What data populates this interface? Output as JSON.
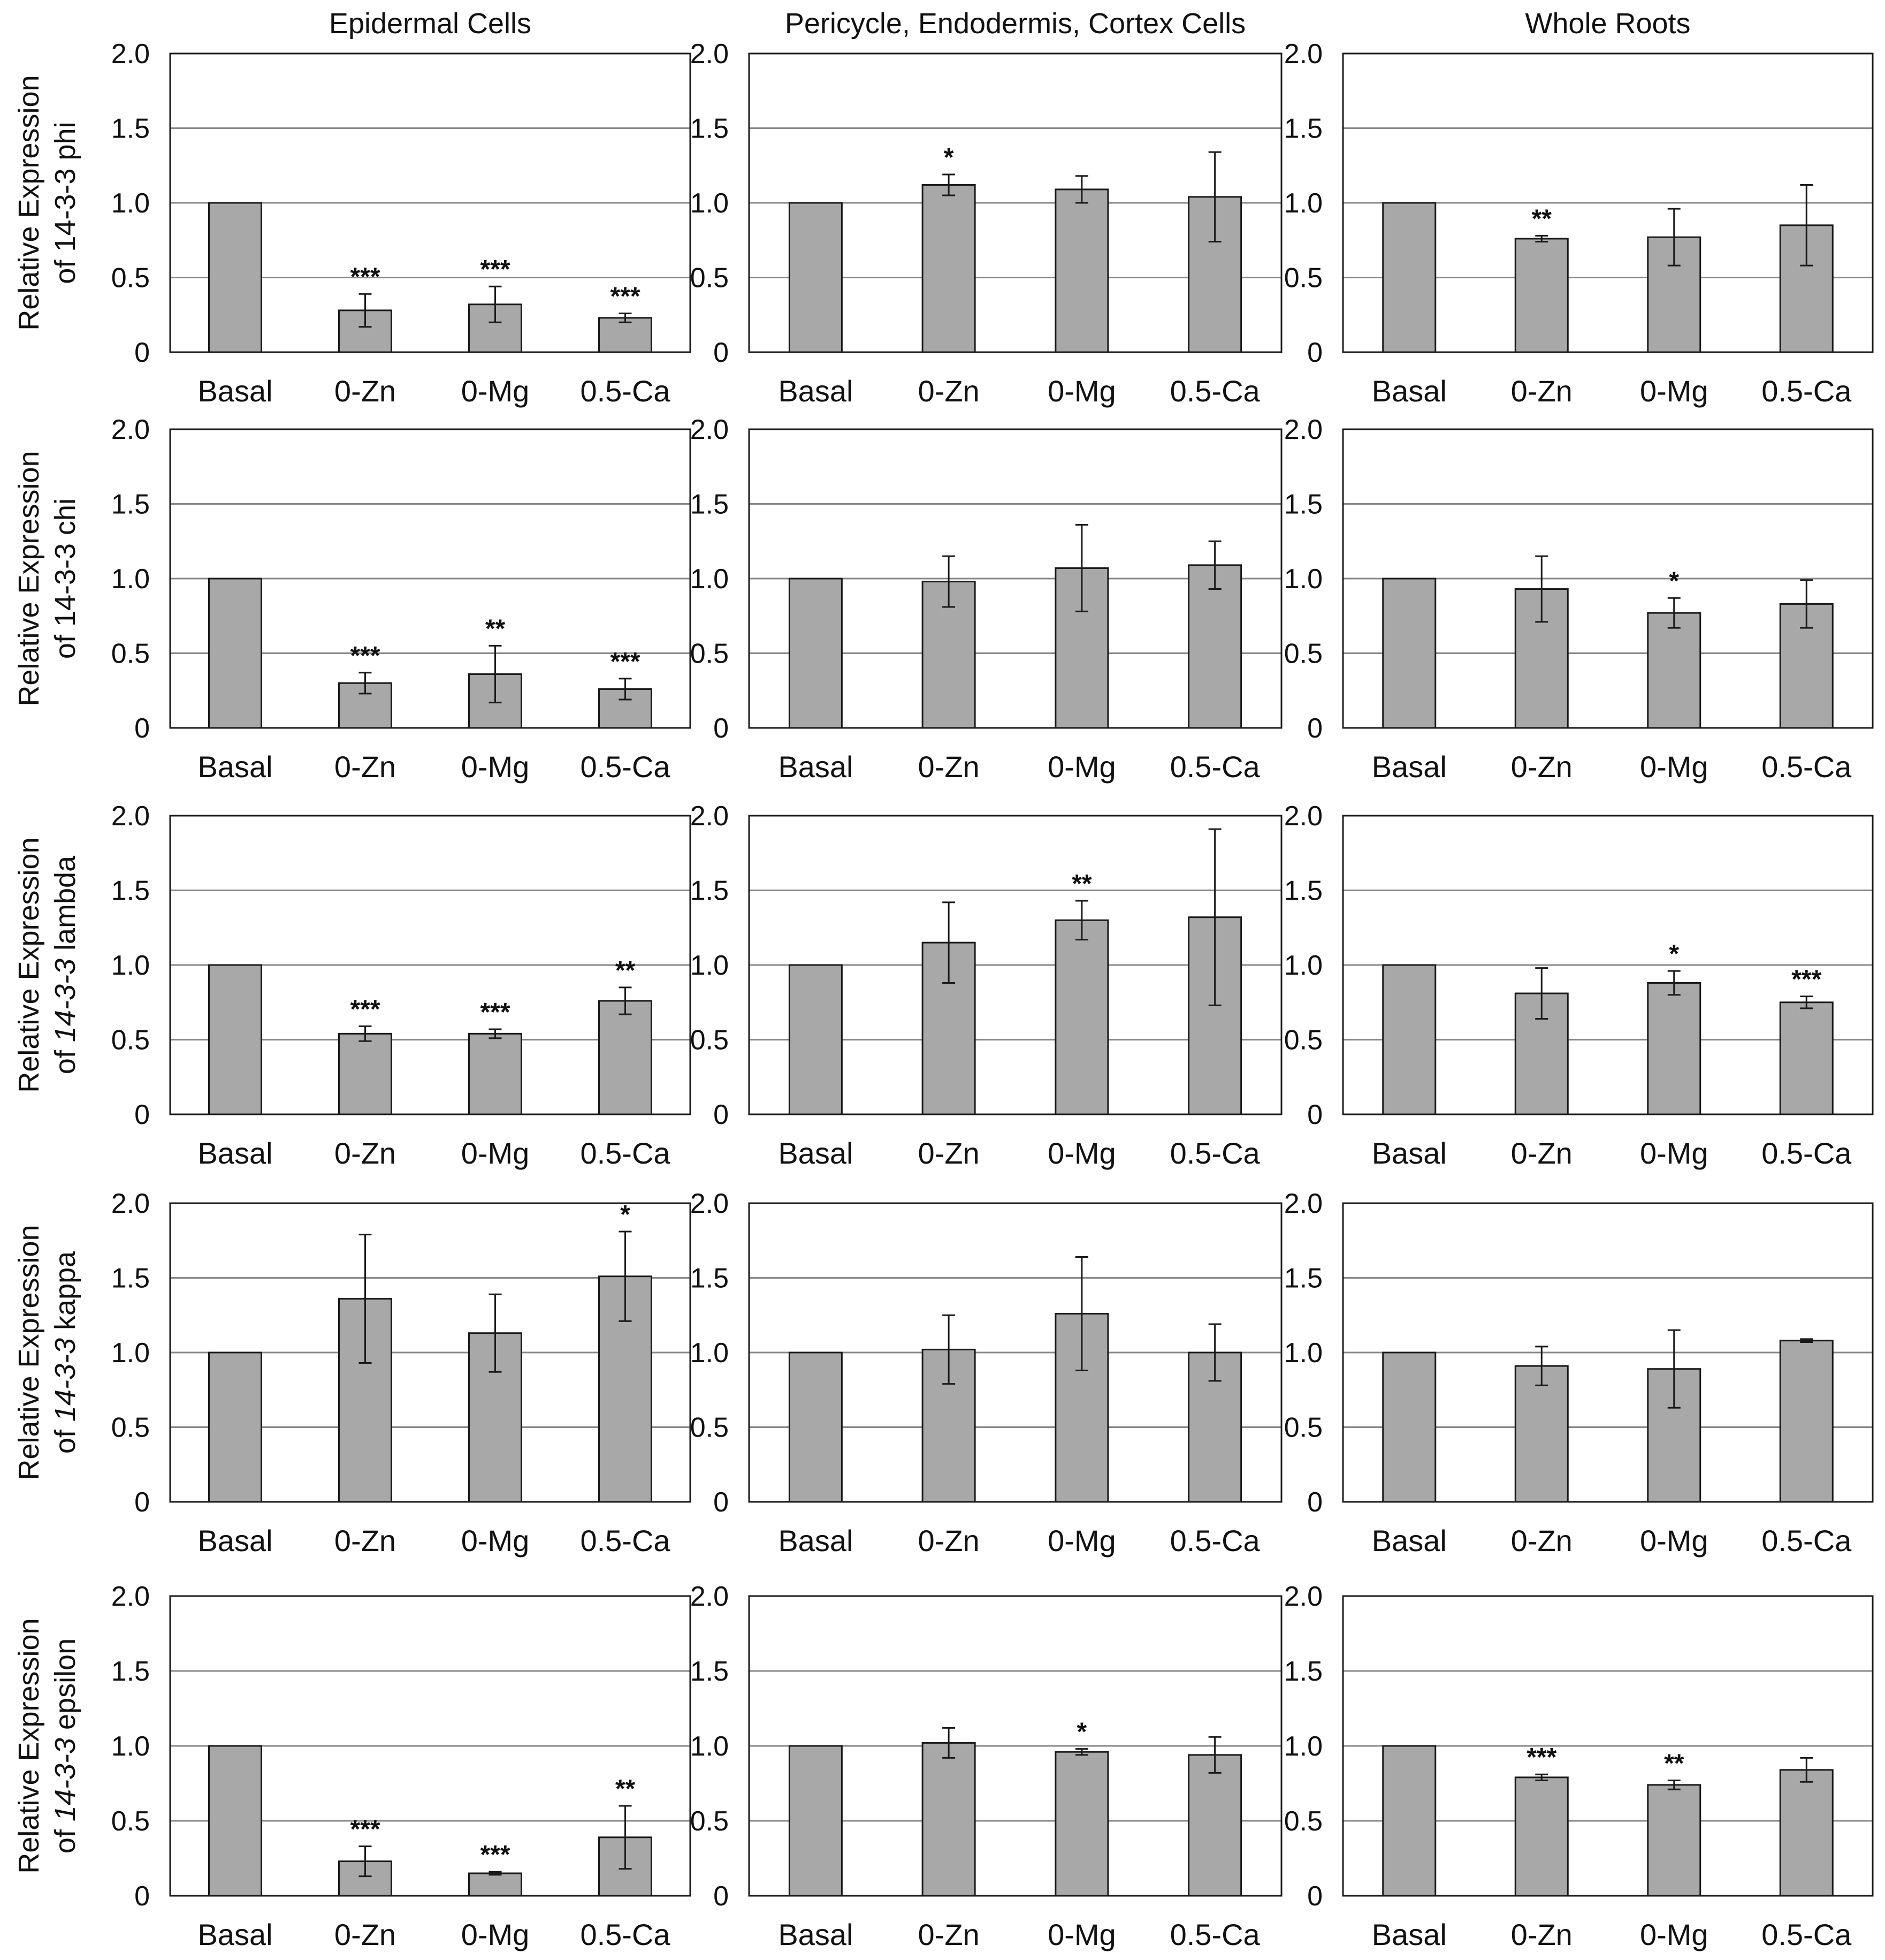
{
  "columns": [
    "Epidermal Cells",
    "Pericycle, Endodermis, Cortex Cells",
    "Whole Roots"
  ],
  "rows": [
    {
      "line1": "Relative Expression",
      "line2_prefix": "of ",
      "gene": "14-3-3",
      "gene_italic": false,
      "isoform": " phi"
    },
    {
      "line1": "Relative Expression",
      "line2_prefix": "of ",
      "gene": "14-3-3",
      "gene_italic": false,
      "isoform": " chi"
    },
    {
      "line1": "Relative Expression",
      "line2_prefix": "of ",
      "gene": "14-3-3",
      "gene_italic": true,
      "isoform": " lambda"
    },
    {
      "line1": "Relative Expression",
      "line2_prefix": "of ",
      "gene": "14-3-3",
      "gene_italic": true,
      "isoform": " kappa"
    },
    {
      "line1": "Relative Expression",
      "line2_prefix": "of ",
      "gene": "14-3-3",
      "gene_italic": true,
      "isoform": " epsilon"
    }
  ],
  "colors": {
    "bar": "#a8a8a8",
    "stroke": "#1a1a1a",
    "grid": "#888888"
  },
  "chart_data": {
    "type": "bar",
    "categories": [
      "Basal",
      "0-Zn",
      "0-Mg",
      "0.5-Ca"
    ],
    "ylim": [
      0,
      2.0
    ],
    "yticks": [
      "0",
      "0.5",
      "1.0",
      "1.5",
      "2.0"
    ],
    "panels": [
      {
        "row": 0,
        "col": 0,
        "values": [
          1.0,
          0.28,
          0.32,
          0.23
        ],
        "errors": [
          0,
          0.11,
          0.12,
          0.03
        ],
        "sig": [
          "",
          "***",
          "***",
          "***"
        ]
      },
      {
        "row": 0,
        "col": 1,
        "values": [
          1.0,
          1.12,
          1.09,
          1.04
        ],
        "errors": [
          0,
          0.07,
          0.09,
          0.3
        ],
        "sig": [
          "",
          "*",
          "",
          ""
        ]
      },
      {
        "row": 0,
        "col": 2,
        "values": [
          1.0,
          0.76,
          0.77,
          0.85
        ],
        "errors": [
          0,
          0.02,
          0.19,
          0.27
        ],
        "sig": [
          "",
          "**",
          "",
          ""
        ]
      },
      {
        "row": 1,
        "col": 0,
        "values": [
          1.0,
          0.3,
          0.36,
          0.26
        ],
        "errors": [
          0,
          0.07,
          0.19,
          0.07
        ],
        "sig": [
          "",
          "***",
          "**",
          "***"
        ]
      },
      {
        "row": 1,
        "col": 1,
        "values": [
          1.0,
          0.98,
          1.07,
          1.09
        ],
        "errors": [
          0,
          0.17,
          0.29,
          0.16
        ],
        "sig": [
          "",
          "",
          "",
          ""
        ]
      },
      {
        "row": 1,
        "col": 2,
        "values": [
          1.0,
          0.93,
          0.77,
          0.83
        ],
        "errors": [
          0,
          0.22,
          0.1,
          0.16
        ],
        "sig": [
          "",
          "",
          "*",
          ""
        ]
      },
      {
        "row": 2,
        "col": 0,
        "values": [
          1.0,
          0.54,
          0.54,
          0.76
        ],
        "errors": [
          0,
          0.05,
          0.03,
          0.09
        ],
        "sig": [
          "",
          "***",
          "***",
          "**"
        ]
      },
      {
        "row": 2,
        "col": 1,
        "values": [
          1.0,
          1.15,
          1.3,
          1.32
        ],
        "errors": [
          0,
          0.27,
          0.13,
          0.59
        ],
        "sig": [
          "",
          "",
          "**",
          ""
        ]
      },
      {
        "row": 2,
        "col": 2,
        "values": [
          1.0,
          0.81,
          0.88,
          0.75
        ],
        "errors": [
          0,
          0.17,
          0.08,
          0.04
        ],
        "sig": [
          "",
          "",
          "*",
          "***"
        ]
      },
      {
        "row": 3,
        "col": 0,
        "values": [
          1.0,
          1.36,
          1.13,
          1.51
        ],
        "errors": [
          0,
          0.43,
          0.26,
          0.3
        ],
        "sig": [
          "",
          "",
          "",
          "*"
        ]
      },
      {
        "row": 3,
        "col": 1,
        "values": [
          1.0,
          1.02,
          1.26,
          1.0
        ],
        "errors": [
          0,
          0.23,
          0.38,
          0.19
        ],
        "sig": [
          "",
          "",
          "",
          ""
        ]
      },
      {
        "row": 3,
        "col": 2,
        "values": [
          1.0,
          0.91,
          0.89,
          1.08
        ],
        "errors": [
          0,
          0.13,
          0.26,
          0.01
        ],
        "sig": [
          "",
          "",
          "",
          ""
        ]
      },
      {
        "row": 4,
        "col": 0,
        "values": [
          1.0,
          0.23,
          0.15,
          0.39
        ],
        "errors": [
          0,
          0.1,
          0.01,
          0.21
        ],
        "sig": [
          "",
          "***",
          "***",
          "**"
        ]
      },
      {
        "row": 4,
        "col": 1,
        "values": [
          1.0,
          1.02,
          0.96,
          0.94
        ],
        "errors": [
          0,
          0.1,
          0.02,
          0.12
        ],
        "sig": [
          "",
          "",
          "*",
          ""
        ]
      },
      {
        "row": 4,
        "col": 2,
        "values": [
          1.0,
          0.79,
          0.74,
          0.84
        ],
        "errors": [
          0,
          0.02,
          0.03,
          0.08
        ],
        "sig": [
          "",
          "***",
          "**",
          ""
        ]
      }
    ]
  }
}
